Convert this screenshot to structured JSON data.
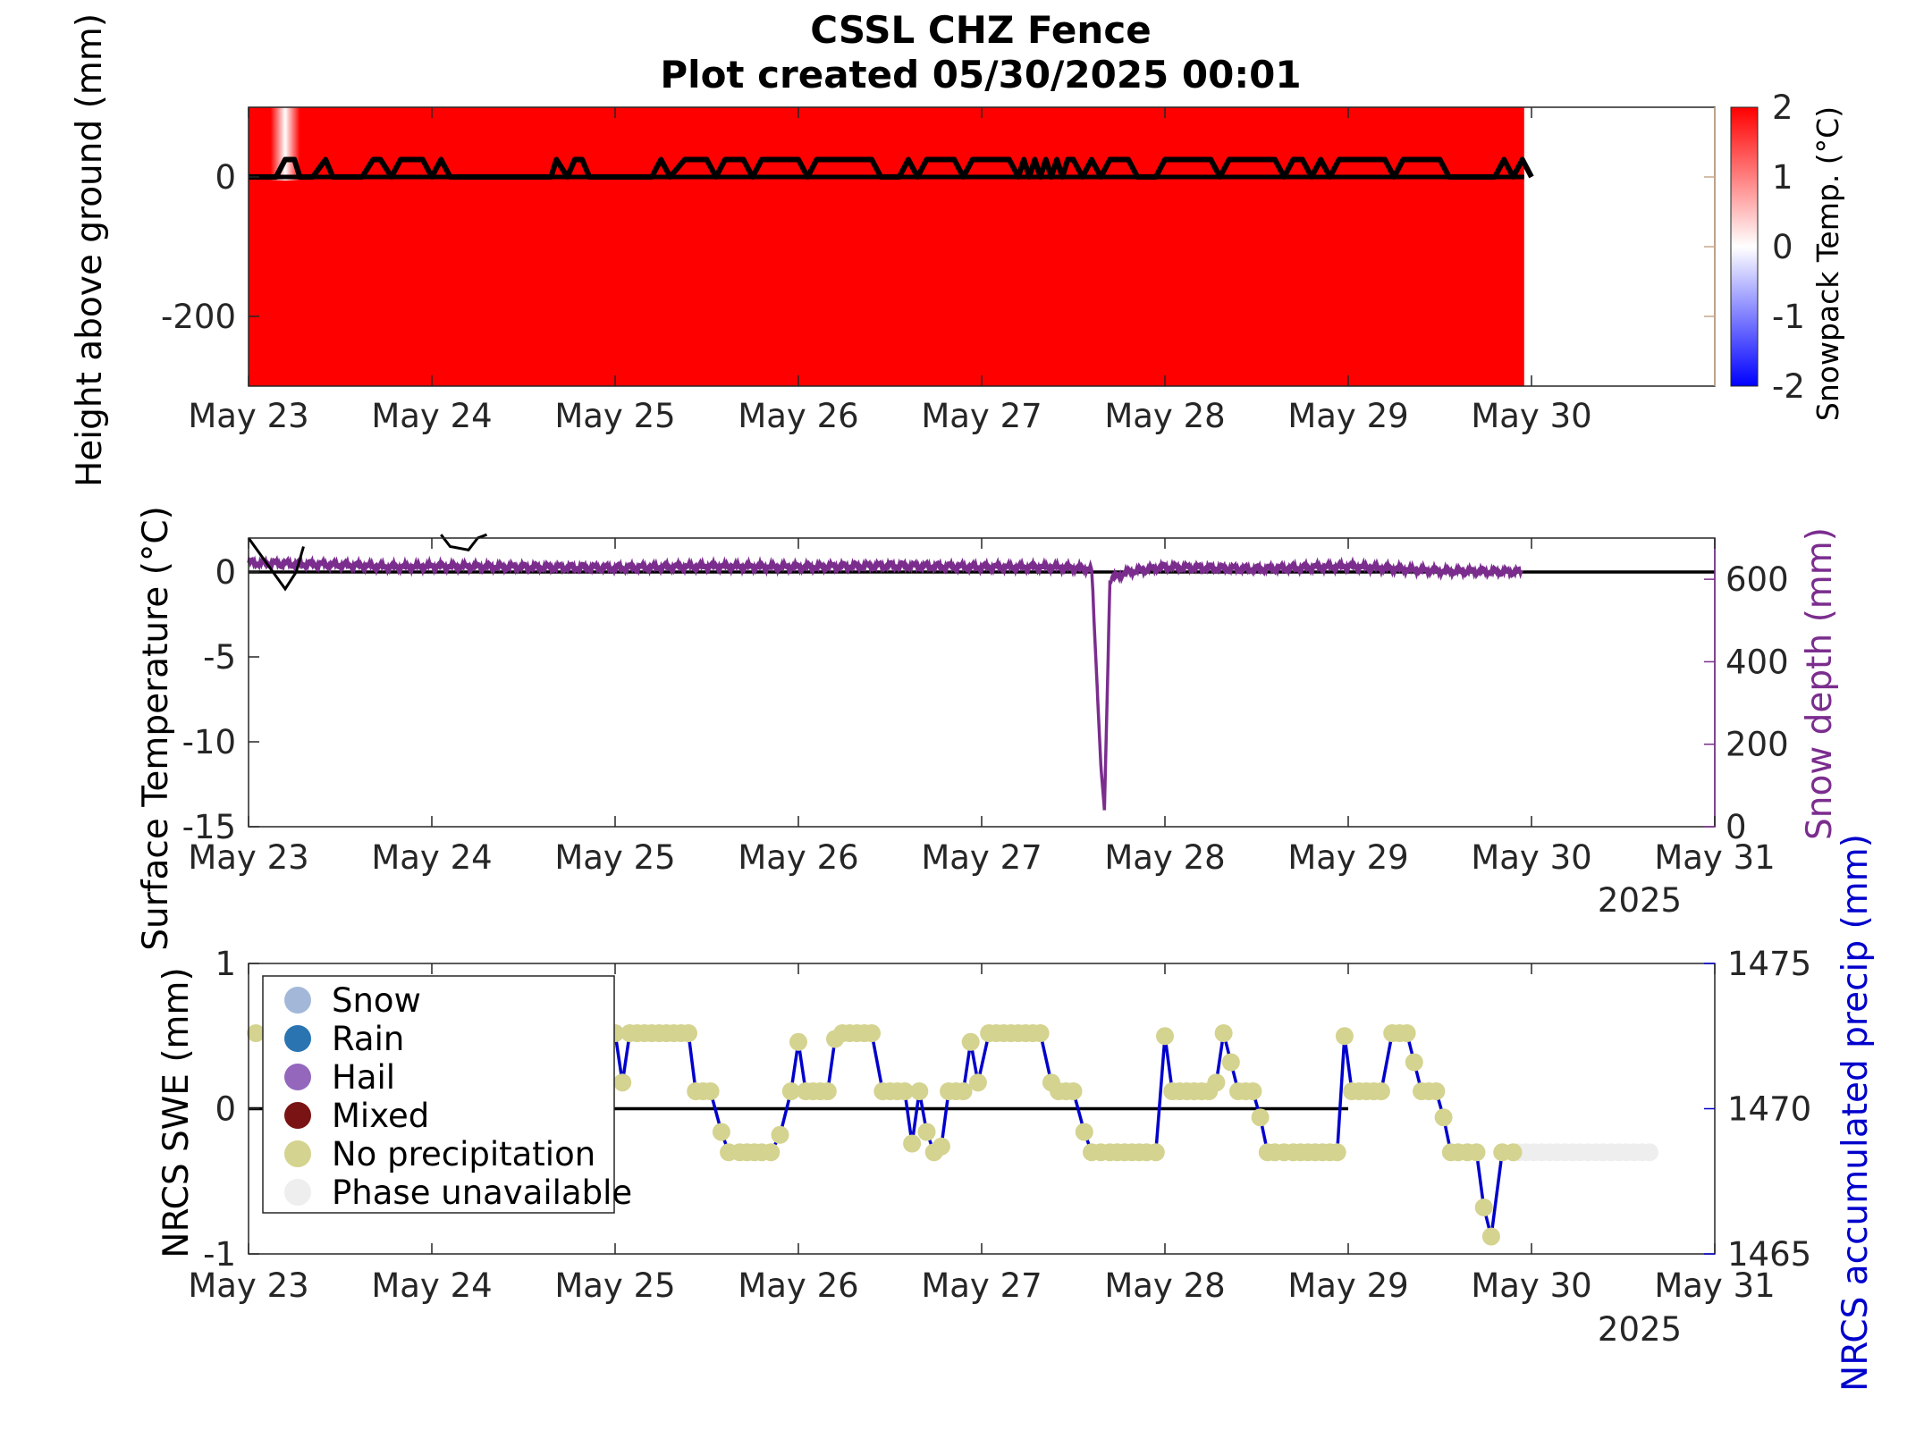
{
  "title": {
    "line1": "CSSL CHZ Fence",
    "line2": "Plot created 05/30/2025 00:01"
  },
  "colors": {
    "snowpack": "#ff0000",
    "snow_depth": "#7b2d8e",
    "precip_line": "#0000cc",
    "no_precip": "#d4d38f",
    "phase_unavailable": "#eeeeee",
    "snow": "#a3b8d9",
    "rain": "#2a74b2",
    "hail": "#9467bd",
    "mixed": "#7a1313"
  },
  "chart_data": [
    {
      "type": "heatmap",
      "name": "Snowpack temperature profile",
      "ylabel": "Height above ground (mm)",
      "colorbar_label": "Snowpack Temp. (°C)",
      "colorbar_ticks": [
        "2",
        "1",
        "0",
        "-1",
        "-2"
      ],
      "clim": [
        -2,
        2
      ],
      "xticks": [
        "May 23",
        "May 24",
        "May 25",
        "May 26",
        "May 27",
        "May 28",
        "May 29",
        "May 30"
      ],
      "yticks": [
        "0",
        "-200"
      ],
      "xlim_days": [
        0,
        8
      ],
      "ylim": [
        -300,
        100
      ],
      "data_end_day": 6.96,
      "fill_value_c": 2,
      "snow_surface_mm": [
        [
          0,
          0
        ],
        [
          0.15,
          0
        ],
        [
          0.2,
          25
        ],
        [
          0.25,
          25
        ],
        [
          0.28,
          0
        ],
        [
          0.35,
          0
        ],
        [
          0.42,
          25
        ],
        [
          0.46,
          0
        ],
        [
          0.62,
          0
        ],
        [
          0.68,
          25
        ],
        [
          0.72,
          25
        ],
        [
          0.78,
          0
        ],
        [
          0.83,
          25
        ],
        [
          0.95,
          25
        ],
        [
          1.0,
          0
        ],
        [
          1.05,
          25
        ],
        [
          1.1,
          0
        ],
        [
          1.65,
          0
        ],
        [
          1.68,
          25
        ],
        [
          1.74,
          0
        ],
        [
          1.78,
          25
        ],
        [
          1.82,
          25
        ],
        [
          1.86,
          0
        ],
        [
          2.2,
          0
        ],
        [
          2.25,
          25
        ],
        [
          2.3,
          0
        ],
        [
          2.38,
          25
        ],
        [
          2.5,
          25
        ],
        [
          2.55,
          0
        ],
        [
          2.6,
          25
        ],
        [
          2.7,
          25
        ],
        [
          2.75,
          0
        ],
        [
          2.8,
          25
        ],
        [
          3.0,
          25
        ],
        [
          3.05,
          0
        ],
        [
          3.1,
          25
        ],
        [
          3.4,
          25
        ],
        [
          3.45,
          0
        ],
        [
          3.55,
          0
        ],
        [
          3.6,
          25
        ],
        [
          3.65,
          0
        ],
        [
          3.7,
          25
        ],
        [
          3.85,
          25
        ],
        [
          3.9,
          0
        ],
        [
          3.95,
          25
        ],
        [
          4.15,
          25
        ],
        [
          4.2,
          0
        ],
        [
          4.23,
          25
        ],
        [
          4.26,
          0
        ],
        [
          4.29,
          25
        ],
        [
          4.32,
          0
        ],
        [
          4.35,
          25
        ],
        [
          4.38,
          0
        ],
        [
          4.41,
          25
        ],
        [
          4.44,
          0
        ],
        [
          4.47,
          25
        ],
        [
          4.5,
          25
        ],
        [
          4.55,
          0
        ],
        [
          4.6,
          25
        ],
        [
          4.65,
          0
        ],
        [
          4.7,
          25
        ],
        [
          4.8,
          25
        ],
        [
          4.85,
          0
        ],
        [
          4.95,
          0
        ],
        [
          5.0,
          25
        ],
        [
          5.25,
          25
        ],
        [
          5.3,
          0
        ],
        [
          5.35,
          25
        ],
        [
          5.6,
          25
        ],
        [
          5.65,
          0
        ],
        [
          5.7,
          25
        ],
        [
          5.75,
          25
        ],
        [
          5.8,
          0
        ],
        [
          5.85,
          25
        ],
        [
          5.9,
          0
        ],
        [
          5.95,
          25
        ],
        [
          6.2,
          25
        ],
        [
          6.25,
          0
        ],
        [
          6.3,
          25
        ],
        [
          6.5,
          25
        ],
        [
          6.55,
          0
        ],
        [
          6.8,
          0
        ],
        [
          6.85,
          25
        ],
        [
          6.9,
          0
        ],
        [
          6.95,
          25
        ],
        [
          7.0,
          0
        ]
      ],
      "annotation_band_days": [
        0.12,
        0.28
      ]
    },
    {
      "type": "line",
      "name": "Surface temperature and snow depth",
      "ylabel": "Surface Temperature (°C)",
      "y2label": "Snow depth (mm)",
      "xticks": [
        "May 23",
        "May 24",
        "May 25",
        "May 26",
        "May 27",
        "May 28",
        "May 29",
        "May 30",
        "May 31"
      ],
      "year_label": "2025",
      "ylim": [
        -15,
        2
      ],
      "yticks": [
        "0",
        "-5",
        "-10",
        "-15"
      ],
      "y2lim": [
        0,
        700
      ],
      "y2ticks": [
        "600",
        "400",
        "200",
        "0"
      ],
      "xlim_days": [
        0,
        8
      ],
      "surface_temp": [
        [
          0,
          2
        ],
        [
          0.1,
          0.5
        ],
        [
          0.2,
          -1
        ],
        [
          0.26,
          0
        ],
        [
          0.3,
          1.5
        ],
        [
          0.33,
          2.2
        ],
        [
          1.05,
          2.2
        ],
        [
          1.1,
          1.5
        ],
        [
          1.2,
          1.3
        ],
        [
          1.25,
          2.0
        ],
        [
          1.3,
          2.2
        ]
      ],
      "snow_depth_mm": [
        [
          0,
          640
        ],
        [
          0.5,
          635
        ],
        [
          0.8,
          630
        ],
        [
          1.0,
          632
        ],
        [
          1.5,
          630
        ],
        [
          2.0,
          628
        ],
        [
          2.5,
          632
        ],
        [
          3.0,
          630
        ],
        [
          3.5,
          633
        ],
        [
          4.0,
          630
        ],
        [
          4.4,
          630
        ],
        [
          4.6,
          625
        ],
        [
          4.65,
          150
        ],
        [
          4.67,
          40
        ],
        [
          4.7,
          600
        ],
        [
          4.8,
          618
        ],
        [
          5.0,
          630
        ],
        [
          5.5,
          625
        ],
        [
          6.0,
          632
        ],
        [
          6.5,
          620
        ],
        [
          6.95,
          618
        ]
      ]
    },
    {
      "type": "scatter",
      "name": "NRCS SWE and accumulated precipitation",
      "ylabel": "NRCS SWE (mm)",
      "y2label": "NRCS accumulated precip (mm)",
      "xticks": [
        "May 23",
        "May 24",
        "May 25",
        "May 26",
        "May 27",
        "May 28",
        "May 29",
        "May 30",
        "May 31"
      ],
      "year_label": "2025",
      "ylim": [
        -1,
        1
      ],
      "yticks": [
        "1",
        "0",
        "-1"
      ],
      "y2lim": [
        1465,
        1475
      ],
      "y2ticks": [
        "1475",
        "1470",
        "1465"
      ],
      "xlim_days": [
        0,
        8
      ],
      "swe_zero_line_days": [
        0,
        6.0
      ],
      "legend": [
        {
          "label": "Snow",
          "color_key": "snow"
        },
        {
          "label": "Rain",
          "color_key": "rain"
        },
        {
          "label": "Hail",
          "color_key": "hail"
        },
        {
          "label": "Mixed",
          "color_key": "mixed"
        },
        {
          "label": "No precipitation",
          "color_key": "no_precip"
        },
        {
          "label": "Phase unavailable",
          "color_key": "phase_unavailable"
        }
      ],
      "precip_mm": [
        [
          0.04,
          1472.6
        ],
        [
          2.0,
          1472.6
        ],
        [
          2.04,
          1470.9
        ],
        [
          2.08,
          1472.6
        ],
        [
          2.12,
          1472.6
        ],
        [
          2.16,
          1472.6
        ],
        [
          2.2,
          1472.6
        ],
        [
          2.24,
          1472.6
        ],
        [
          2.28,
          1472.6
        ],
        [
          2.32,
          1472.6
        ],
        [
          2.36,
          1472.6
        ],
        [
          2.4,
          1472.6
        ],
        [
          2.44,
          1470.6
        ],
        [
          2.48,
          1470.6
        ],
        [
          2.52,
          1470.6
        ],
        [
          2.58,
          1469.2
        ],
        [
          2.62,
          1468.5
        ],
        [
          2.68,
          1468.5
        ],
        [
          2.72,
          1468.5
        ],
        [
          2.76,
          1468.5
        ],
        [
          2.8,
          1468.5
        ],
        [
          2.85,
          1468.5
        ],
        [
          2.9,
          1469.1
        ],
        [
          2.96,
          1470.6
        ],
        [
          3.0,
          1472.3
        ],
        [
          3.04,
          1470.6
        ],
        [
          3.08,
          1470.6
        ],
        [
          3.12,
          1470.6
        ],
        [
          3.16,
          1470.6
        ],
        [
          3.2,
          1472.4
        ],
        [
          3.24,
          1472.6
        ],
        [
          3.28,
          1472.6
        ],
        [
          3.32,
          1472.6
        ],
        [
          3.36,
          1472.6
        ],
        [
          3.4,
          1472.6
        ],
        [
          3.46,
          1470.6
        ],
        [
          3.5,
          1470.6
        ],
        [
          3.54,
          1470.6
        ],
        [
          3.58,
          1470.6
        ],
        [
          3.62,
          1468.8
        ],
        [
          3.66,
          1470.6
        ],
        [
          3.7,
          1469.2
        ],
        [
          3.74,
          1468.5
        ],
        [
          3.78,
          1468.7
        ],
        [
          3.82,
          1470.6
        ],
        [
          3.86,
          1470.6
        ],
        [
          3.9,
          1470.6
        ],
        [
          3.94,
          1472.3
        ],
        [
          3.98,
          1470.9
        ],
        [
          4.04,
          1472.6
        ],
        [
          4.08,
          1472.6
        ],
        [
          4.12,
          1472.6
        ],
        [
          4.16,
          1472.6
        ],
        [
          4.2,
          1472.6
        ],
        [
          4.24,
          1472.6
        ],
        [
          4.28,
          1472.6
        ],
        [
          4.32,
          1472.6
        ],
        [
          4.38,
          1470.9
        ],
        [
          4.42,
          1470.6
        ],
        [
          4.46,
          1470.6
        ],
        [
          4.5,
          1470.6
        ],
        [
          4.56,
          1469.2
        ],
        [
          4.6,
          1468.5
        ],
        [
          4.65,
          1468.5
        ],
        [
          4.7,
          1468.5
        ],
        [
          4.74,
          1468.5
        ],
        [
          4.78,
          1468.5
        ],
        [
          4.82,
          1468.5
        ],
        [
          4.86,
          1468.5
        ],
        [
          4.9,
          1468.5
        ],
        [
          4.95,
          1468.5
        ],
        [
          5.0,
          1472.5
        ],
        [
          5.04,
          1470.6
        ],
        [
          5.08,
          1470.6
        ],
        [
          5.12,
          1470.6
        ],
        [
          5.16,
          1470.6
        ],
        [
          5.2,
          1470.6
        ],
        [
          5.24,
          1470.6
        ],
        [
          5.28,
          1470.9
        ],
        [
          5.32,
          1472.6
        ],
        [
          5.36,
          1471.6
        ],
        [
          5.4,
          1470.6
        ],
        [
          5.44,
          1470.6
        ],
        [
          5.48,
          1470.6
        ],
        [
          5.52,
          1469.7
        ],
        [
          5.56,
          1468.5
        ],
        [
          5.6,
          1468.5
        ],
        [
          5.65,
          1468.5
        ],
        [
          5.7,
          1468.5
        ],
        [
          5.74,
          1468.5
        ],
        [
          5.78,
          1468.5
        ],
        [
          5.82,
          1468.5
        ],
        [
          5.86,
          1468.5
        ],
        [
          5.9,
          1468.5
        ],
        [
          5.94,
          1468.5
        ],
        [
          5.98,
          1472.5
        ],
        [
          6.02,
          1470.6
        ],
        [
          6.06,
          1470.6
        ],
        [
          6.1,
          1470.6
        ],
        [
          6.14,
          1470.6
        ],
        [
          6.18,
          1470.6
        ],
        [
          6.24,
          1472.6
        ],
        [
          6.28,
          1472.6
        ],
        [
          6.32,
          1472.6
        ],
        [
          6.36,
          1471.6
        ],
        [
          6.4,
          1470.6
        ],
        [
          6.44,
          1470.6
        ],
        [
          6.48,
          1470.6
        ],
        [
          6.52,
          1469.7
        ],
        [
          6.56,
          1468.5
        ],
        [
          6.6,
          1468.5
        ],
        [
          6.65,
          1468.5
        ],
        [
          6.7,
          1468.5
        ],
        [
          6.74,
          1466.6
        ],
        [
          6.78,
          1465.6
        ],
        [
          6.84,
          1468.5
        ],
        [
          6.9,
          1468.5
        ]
      ],
      "phase_unavailable_range_days": [
        6.93,
        7.66
      ],
      "phase_unavailable_value": 1468.5
    }
  ]
}
